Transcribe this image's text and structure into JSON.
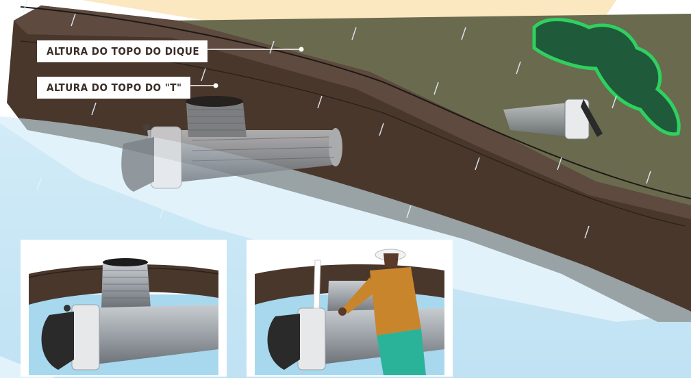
{
  "labels": {
    "dike_top": "ALTURA DO TOPO DO DIQUE",
    "t_top": "ALTURA DO TOPO DO \"T\""
  },
  "colors": {
    "water": "#bfe3f4",
    "water_deep": "#9fd0ea",
    "sand": "#fbe7c0",
    "dike": "#4a372c",
    "dike_light": "#6b574b",
    "grass": "#6a6a4e",
    "bush": "#1f5a3a",
    "pipe": "#9aa0a6",
    "pipe_dark": "#5e646a",
    "shirt": "#c9852c",
    "pants": "#2bb39a"
  },
  "icons": [
    "rain",
    "bush",
    "t-pipe",
    "outlet-pipe",
    "person"
  ]
}
